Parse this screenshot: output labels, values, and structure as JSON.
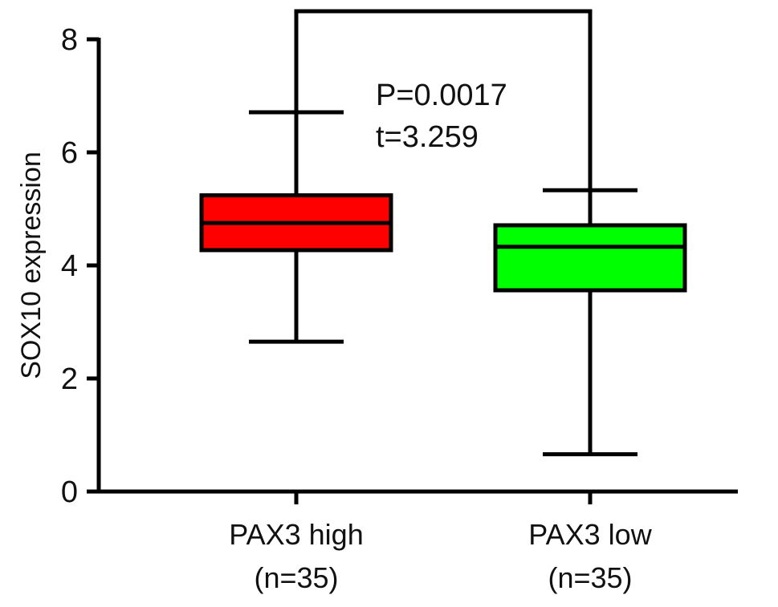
{
  "chart_data": {
    "type": "box",
    "ylabel": "SOX10 expression",
    "ylim": [
      0,
      8
    ],
    "yticks": [
      0,
      2,
      4,
      6,
      8
    ],
    "categories": [
      {
        "name": "PAX3 high",
        "n_label": "(n=35)",
        "color": "#ff0000",
        "min": 2.65,
        "q1": 4.27,
        "median": 4.75,
        "q3": 5.24,
        "max": 6.71
      },
      {
        "name": "PAX3 low",
        "n_label": "(n=35)",
        "color": "#00ff00",
        "min": 0.66,
        "q1": 3.56,
        "median": 4.33,
        "q3": 4.71,
        "max": 5.33
      }
    ],
    "annotation": {
      "p_value": "P=0.0017",
      "t_value": "t=3.259"
    }
  }
}
